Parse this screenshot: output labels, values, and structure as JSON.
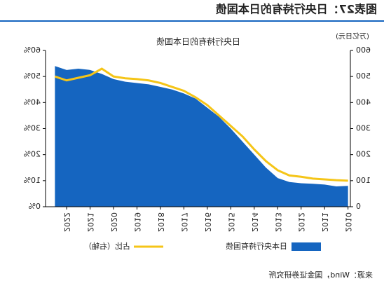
{
  "chart_data": {
    "type": "area-line",
    "title": "图表27：日央行持有的日本国债",
    "subtitle": "日央行持有的日本国债",
    "y_label": "(万亿日元)",
    "source": "来源：Wind，国金证券研究所",
    "x": [
      2010.0,
      2010.5,
      2011.0,
      2011.5,
      2012.0,
      2012.5,
      2013.0,
      2013.5,
      2014.0,
      2014.5,
      2015.0,
      2015.5,
      2016.0,
      2016.5,
      2017.0,
      2017.5,
      2018.0,
      2018.5,
      2019.0,
      2019.5,
      2020.0,
      2020.5,
      2021.0,
      2021.5,
      2022.0,
      2022.5
    ],
    "series": [
      {
        "name": "日本央行持有国债",
        "color": "#1565c0",
        "values": [
          80,
          78,
          85,
          88,
          90,
          95,
          110,
          150,
          200,
          250,
          300,
          345,
          380,
          415,
          435,
          450,
          460,
          470,
          475,
          480,
          490,
          510,
          525,
          530,
          525,
          540
        ]
      },
      {
        "name": "占比（右轴）",
        "color": "#f5c518",
        "axis": "y2",
        "values": [
          10,
          10.2,
          10.5,
          10.8,
          11.5,
          12,
          14,
          17.5,
          22,
          27,
          31,
          35,
          39,
          42,
          44.5,
          46,
          47.5,
          48.5,
          49,
          49.3,
          50,
          53,
          50.5,
          49.5,
          48.5,
          50
        ]
      }
    ],
    "xlim": [
      2009.9,
      2022.9
    ],
    "xticks": [
      2010,
      2011,
      2012,
      2013,
      2014,
      2015,
      2016,
      2017,
      2018,
      2019,
      2020,
      2021,
      2022
    ],
    "ylim": [
      0,
      600
    ],
    "yticks": [
      0,
      100,
      200,
      300,
      400,
      500,
      600
    ],
    "y2lim": [
      0,
      60
    ],
    "y2ticks": [
      {
        "value": 0,
        "label": "0%"
      },
      {
        "value": 10,
        "label": "10%"
      },
      {
        "value": 20,
        "label": "20%"
      },
      {
        "value": 30,
        "label": "30%"
      },
      {
        "value": 40,
        "label": "40%"
      },
      {
        "value": 50,
        "label": "50%"
      },
      {
        "value": 60,
        "label": "60%"
      }
    ],
    "mirrored": true
  }
}
